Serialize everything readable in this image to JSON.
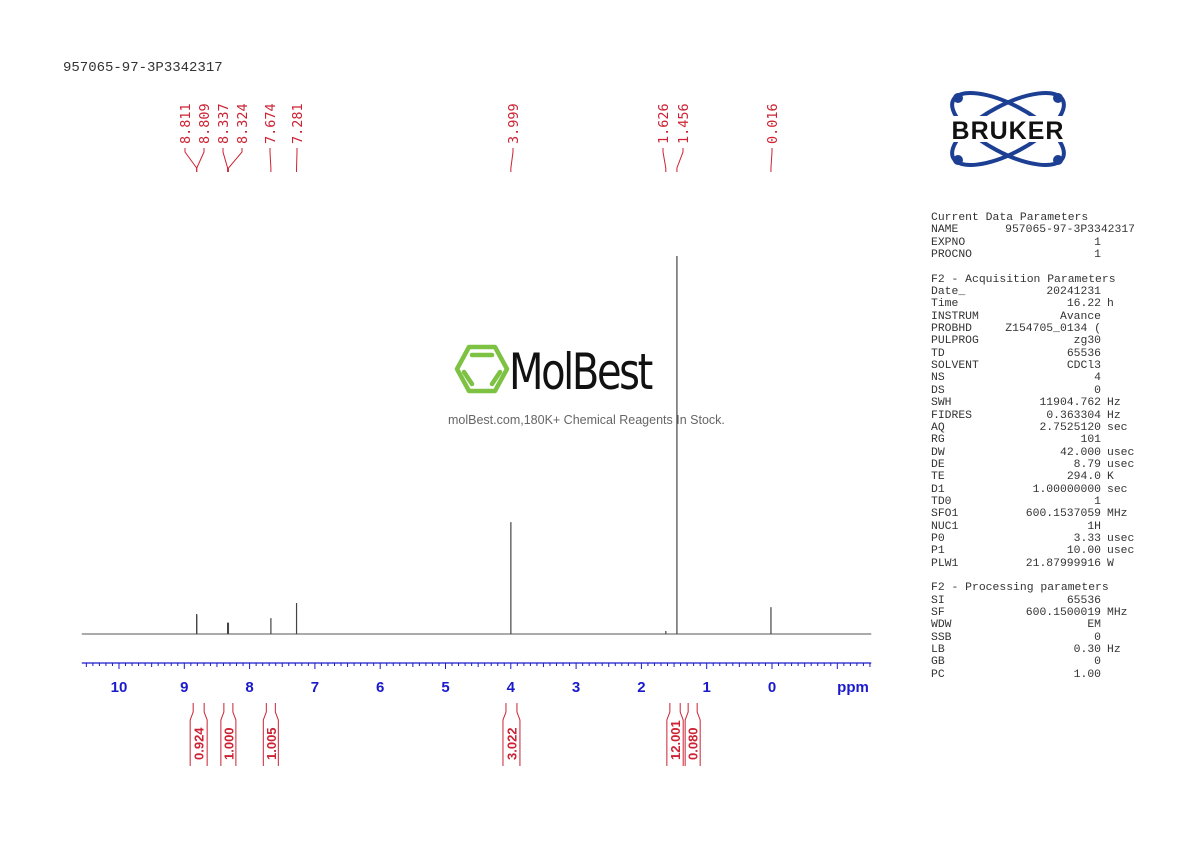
{
  "title": "957065-97-3P3342317",
  "watermark": {
    "name": "MolBest",
    "tagline": "molBest.com,180K+ Chemical Reagents In Stock.",
    "color": "#7dc242"
  },
  "logo": {
    "text": "BRUKER",
    "color": "#1c3f94"
  },
  "parameters": {
    "sections": [
      {
        "header": "Current Data Parameters",
        "rows": [
          [
            "NAME",
            "957065-97-3P3342317",
            ""
          ],
          [
            "EXPNO",
            "1",
            ""
          ],
          [
            "PROCNO",
            "1",
            ""
          ]
        ]
      },
      {
        "header": "F2 - Acquisition Parameters",
        "rows": [
          [
            "Date_",
            "20241231",
            ""
          ],
          [
            "Time",
            "16.22",
            "h"
          ],
          [
            "INSTRUM",
            "Avance",
            ""
          ],
          [
            "PROBHD",
            "Z154705_0134 (",
            ""
          ],
          [
            "PULPROG",
            "zg30",
            ""
          ],
          [
            "TD",
            "65536",
            ""
          ],
          [
            "SOLVENT",
            "CDCl3",
            ""
          ],
          [
            "NS",
            "4",
            ""
          ],
          [
            "DS",
            "0",
            ""
          ],
          [
            "SWH",
            "11904.762",
            "Hz"
          ],
          [
            "FIDRES",
            "0.363304",
            "Hz"
          ],
          [
            "AQ",
            "2.7525120",
            "sec"
          ],
          [
            "RG",
            "101",
            ""
          ],
          [
            "DW",
            "42.000",
            "usec"
          ],
          [
            "DE",
            "8.79",
            "usec"
          ],
          [
            "TE",
            "294.0",
            "K"
          ],
          [
            "D1",
            "1.00000000",
            "sec"
          ],
          [
            "TD0",
            "1",
            ""
          ],
          [
            "SFO1",
            "600.1537059",
            "MHz"
          ],
          [
            "NUC1",
            "1H",
            ""
          ],
          [
            "P0",
            "3.33",
            "usec"
          ],
          [
            "P1",
            "10.00",
            "usec"
          ],
          [
            "PLW1",
            "21.87999916",
            "W"
          ]
        ]
      },
      {
        "header": "F2 - Processing parameters",
        "rows": [
          [
            "SI",
            "65536",
            ""
          ],
          [
            "SF",
            "600.1500019",
            "MHz"
          ],
          [
            "WDW",
            "EM",
            ""
          ],
          [
            "SSB",
            "0",
            ""
          ],
          [
            "LB",
            "0.30",
            "Hz"
          ],
          [
            "GB",
            "0",
            ""
          ],
          [
            "PC",
            "1.00",
            ""
          ]
        ]
      }
    ]
  },
  "chart_data": {
    "type": "line",
    "xlabel": "ppm",
    "xlim": [
      10.57,
      -1.52
    ],
    "x_reversed": true,
    "xticks": [
      "10",
      "9",
      "8",
      "7",
      "6",
      "5",
      "4",
      "3",
      "2",
      "1",
      "0"
    ],
    "axis_color": "#1a1acc",
    "label_color": "#cc2233",
    "peaks": [
      {
        "ppm": 8.811,
        "label": "8.811",
        "intensity": 0.053
      },
      {
        "ppm": 8.809,
        "label": "8.809",
        "intensity": 0.05
      },
      {
        "ppm": 8.337,
        "label": "8.337",
        "intensity": 0.03
      },
      {
        "ppm": 8.324,
        "label": "8.324",
        "intensity": 0.03
      },
      {
        "ppm": 7.674,
        "label": "7.674",
        "intensity": 0.042
      },
      {
        "ppm": 7.281,
        "label": "7.281",
        "intensity": 0.082
      },
      {
        "ppm": 3.999,
        "label": "3.999",
        "intensity": 0.296
      },
      {
        "ppm": 1.626,
        "label": "1.626",
        "intensity": 0.008
      },
      {
        "ppm": 1.456,
        "label": "1.456",
        "intensity": 1.0
      },
      {
        "ppm": 0.016,
        "label": "0.016",
        "intensity": 0.071
      }
    ],
    "integrals": [
      {
        "from": 8.91,
        "to": 8.65,
        "value": "0.924"
      },
      {
        "from": 8.44,
        "to": 8.21,
        "value": "1.000"
      },
      {
        "from": 7.79,
        "to": 7.56,
        "value": "1.005"
      },
      {
        "from": 4.12,
        "to": 3.86,
        "value": "3.022"
      },
      {
        "from": 1.61,
        "to": 1.36,
        "value": "12.001"
      },
      {
        "from": 1.33,
        "to": 1.1,
        "value": "0.080"
      }
    ]
  }
}
